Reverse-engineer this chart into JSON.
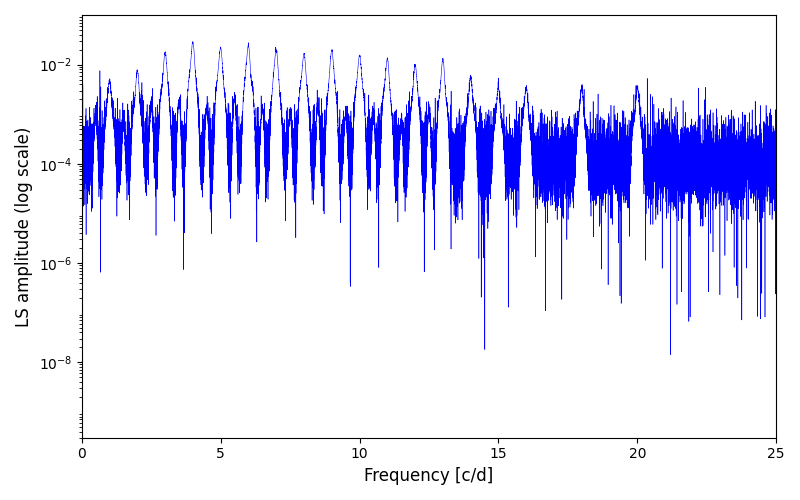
{
  "title": "",
  "xlabel": "Frequency [c/d]",
  "ylabel": "LS amplitude (log scale)",
  "line_color": "#0000ff",
  "xlim": [
    0,
    25
  ],
  "ylim": [
    3e-10,
    0.1
  ],
  "yscale": "log",
  "figsize": [
    8.0,
    5.0
  ],
  "dpi": 100,
  "seed": 12345,
  "n_points": 15000,
  "freq_max": 25.0,
  "background_color": "#ffffff",
  "yticks": [
    1e-08,
    1e-06,
    0.0001,
    0.01
  ],
  "xticks": [
    0,
    5,
    10,
    15,
    20,
    25
  ]
}
